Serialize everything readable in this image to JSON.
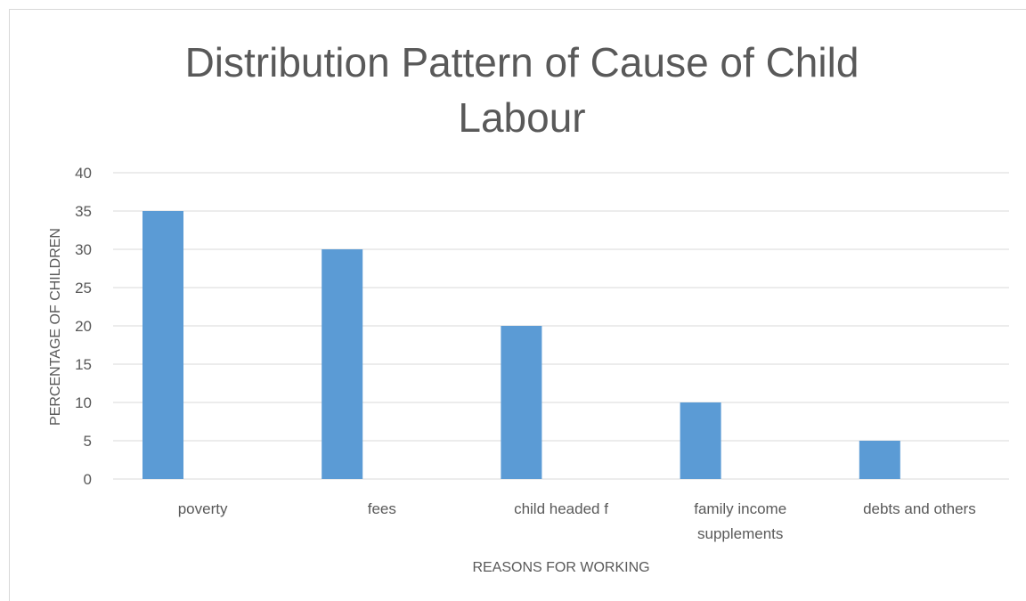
{
  "chart_data": {
    "type": "bar",
    "title_lines": [
      "Distribution Pattern of Cause of Child",
      "Labour"
    ],
    "xlabel": "REASONS FOR WORKING",
    "ylabel": "PERCENTAGE OF CHILDREN",
    "categories": [
      [
        "poverty"
      ],
      [
        "fees"
      ],
      [
        "child headed f"
      ],
      [
        "family income",
        "supplements"
      ],
      [
        "debts and others"
      ]
    ],
    "values": [
      35,
      30,
      20,
      10,
      5
    ],
    "ylim": [
      0,
      40
    ],
    "yticks": [
      "0",
      "5",
      "10",
      "15",
      "20",
      "25",
      "30",
      "35",
      "40"
    ],
    "grid": true,
    "legend": "none",
    "bar_color": "#5b9bd5",
    "grid_color": "#d9d9d9",
    "text_color": "#595959"
  }
}
